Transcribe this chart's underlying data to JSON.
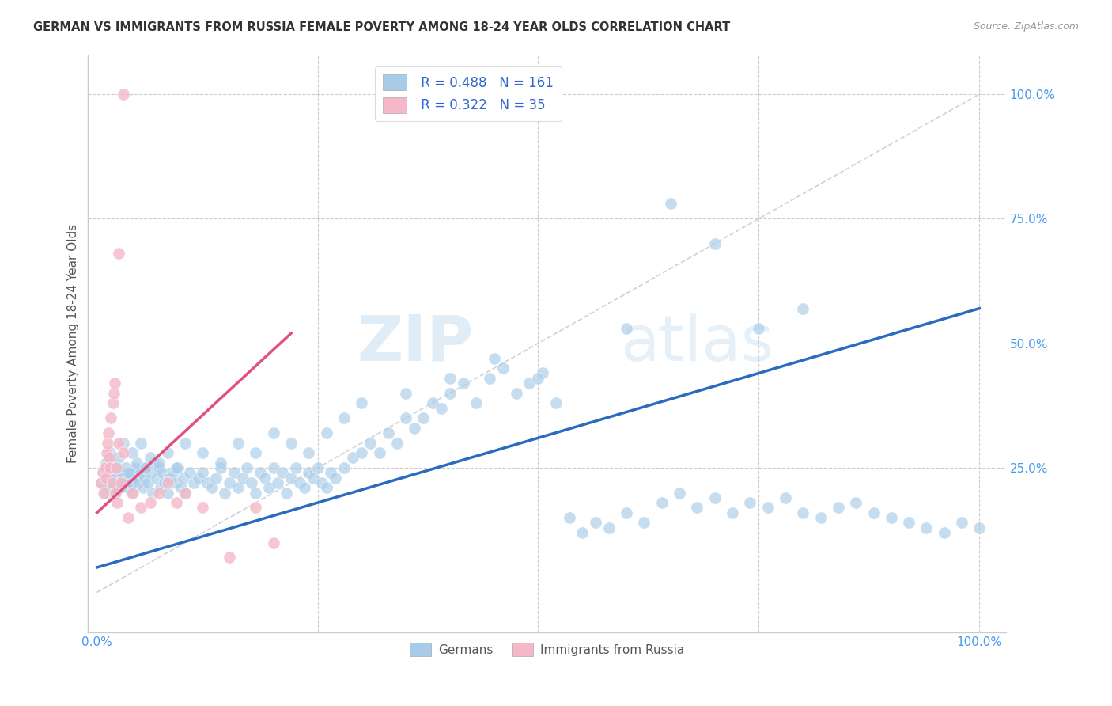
{
  "title": "GERMAN VS IMMIGRANTS FROM RUSSIA FEMALE POVERTY AMONG 18-24 YEAR OLDS CORRELATION CHART",
  "source": "Source: ZipAtlas.com",
  "ylabel": "Female Poverty Among 18-24 Year Olds",
  "watermark_zip": "ZIP",
  "watermark_atlas": "atlas",
  "legend_blue_r": "R = 0.488",
  "legend_blue_n": "N = 161",
  "legend_pink_r": "R = 0.322",
  "legend_pink_n": "N = 35",
  "legend_label_blue": "Germans",
  "legend_label_pink": "Immigrants from Russia",
  "blue_color": "#a8cce8",
  "pink_color": "#f4b8c8",
  "blue_line_color": "#2a6bbf",
  "pink_line_color": "#e05080",
  "diagonal_color": "#cccccc",
  "ytick_color": "#4499ee",
  "xtick_color": "#4499ee",
  "blue_scatter_x": [
    0.005,
    0.008,
    0.01,
    0.012,
    0.013,
    0.015,
    0.016,
    0.018,
    0.019,
    0.02,
    0.022,
    0.023,
    0.025,
    0.026,
    0.028,
    0.03,
    0.031,
    0.033,
    0.035,
    0.036,
    0.038,
    0.04,
    0.041,
    0.043,
    0.045,
    0.047,
    0.05,
    0.052,
    0.054,
    0.056,
    0.058,
    0.06,
    0.063,
    0.065,
    0.068,
    0.07,
    0.072,
    0.074,
    0.077,
    0.08,
    0.083,
    0.086,
    0.089,
    0.092,
    0.095,
    0.098,
    0.1,
    0.105,
    0.11,
    0.115,
    0.12,
    0.125,
    0.13,
    0.135,
    0.14,
    0.145,
    0.15,
    0.155,
    0.16,
    0.165,
    0.17,
    0.175,
    0.18,
    0.185,
    0.19,
    0.195,
    0.2,
    0.205,
    0.21,
    0.215,
    0.22,
    0.225,
    0.23,
    0.235,
    0.24,
    0.245,
    0.25,
    0.255,
    0.26,
    0.265,
    0.27,
    0.28,
    0.29,
    0.3,
    0.31,
    0.32,
    0.33,
    0.34,
    0.35,
    0.36,
    0.37,
    0.38,
    0.39,
    0.4,
    0.415,
    0.43,
    0.445,
    0.46,
    0.475,
    0.49,
    0.505,
    0.52,
    0.535,
    0.55,
    0.565,
    0.58,
    0.6,
    0.62,
    0.64,
    0.66,
    0.68,
    0.7,
    0.72,
    0.74,
    0.76,
    0.78,
    0.8,
    0.82,
    0.84,
    0.86,
    0.88,
    0.9,
    0.92,
    0.94,
    0.96,
    0.98,
    1.0,
    0.01,
    0.015,
    0.02,
    0.025,
    0.03,
    0.035,
    0.04,
    0.045,
    0.05,
    0.055,
    0.06,
    0.07,
    0.08,
    0.09,
    0.1,
    0.12,
    0.14,
    0.16,
    0.18,
    0.2,
    0.22,
    0.24,
    0.26,
    0.28,
    0.3,
    0.35,
    0.4,
    0.45,
    0.5,
    0.6,
    0.65,
    0.7,
    0.75,
    0.8
  ],
  "blue_scatter_y": [
    0.22,
    0.24,
    0.2,
    0.25,
    0.23,
    0.21,
    0.26,
    0.22,
    0.24,
    0.2,
    0.23,
    0.25,
    0.22,
    0.21,
    0.24,
    0.23,
    0.22,
    0.25,
    0.21,
    0.23,
    0.24,
    0.22,
    0.2,
    0.25,
    0.23,
    0.22,
    0.24,
    0.21,
    0.23,
    0.25,
    0.22,
    0.24,
    0.2,
    0.26,
    0.23,
    0.25,
    0.21,
    0.24,
    0.22,
    0.2,
    0.23,
    0.24,
    0.22,
    0.25,
    0.21,
    0.23,
    0.2,
    0.24,
    0.22,
    0.23,
    0.24,
    0.22,
    0.21,
    0.23,
    0.25,
    0.2,
    0.22,
    0.24,
    0.21,
    0.23,
    0.25,
    0.22,
    0.2,
    0.24,
    0.23,
    0.21,
    0.25,
    0.22,
    0.24,
    0.2,
    0.23,
    0.25,
    0.22,
    0.21,
    0.24,
    0.23,
    0.25,
    0.22,
    0.21,
    0.24,
    0.23,
    0.25,
    0.27,
    0.28,
    0.3,
    0.28,
    0.32,
    0.3,
    0.35,
    0.33,
    0.35,
    0.38,
    0.37,
    0.4,
    0.42,
    0.38,
    0.43,
    0.45,
    0.4,
    0.42,
    0.44,
    0.38,
    0.15,
    0.12,
    0.14,
    0.13,
    0.16,
    0.14,
    0.18,
    0.2,
    0.17,
    0.19,
    0.16,
    0.18,
    0.17,
    0.19,
    0.16,
    0.15,
    0.17,
    0.18,
    0.16,
    0.15,
    0.14,
    0.13,
    0.12,
    0.14,
    0.13,
    0.26,
    0.28,
    0.25,
    0.27,
    0.3,
    0.24,
    0.28,
    0.26,
    0.3,
    0.25,
    0.27,
    0.26,
    0.28,
    0.25,
    0.3,
    0.28,
    0.26,
    0.3,
    0.28,
    0.32,
    0.3,
    0.28,
    0.32,
    0.35,
    0.38,
    0.4,
    0.43,
    0.47,
    0.43,
    0.53,
    0.78,
    0.7,
    0.53,
    0.57
  ],
  "pink_scatter_x": [
    0.005,
    0.007,
    0.008,
    0.009,
    0.01,
    0.011,
    0.012,
    0.013,
    0.014,
    0.015,
    0.016,
    0.017,
    0.018,
    0.019,
    0.02,
    0.021,
    0.022,
    0.023,
    0.025,
    0.027,
    0.03,
    0.035,
    0.04,
    0.05,
    0.06,
    0.07,
    0.08,
    0.09,
    0.1,
    0.12,
    0.15,
    0.18,
    0.2,
    0.03,
    0.025
  ],
  "pink_scatter_y": [
    0.22,
    0.24,
    0.2,
    0.25,
    0.23,
    0.28,
    0.3,
    0.32,
    0.27,
    0.25,
    0.35,
    0.22,
    0.38,
    0.4,
    0.42,
    0.2,
    0.25,
    0.18,
    0.3,
    0.22,
    0.28,
    0.15,
    0.2,
    0.17,
    0.18,
    0.2,
    0.22,
    0.18,
    0.2,
    0.17,
    0.07,
    0.17,
    0.1,
    1.0,
    0.68
  ],
  "blue_line_x0": 0.0,
  "blue_line_y0": 0.05,
  "blue_line_x1": 1.0,
  "blue_line_y1": 0.57,
  "pink_line_x0": 0.0,
  "pink_line_y0": 0.16,
  "pink_line_x1": 0.22,
  "pink_line_y1": 0.52,
  "xlim_min": -0.01,
  "xlim_max": 1.03,
  "ylim_min": -0.08,
  "ylim_max": 1.08
}
